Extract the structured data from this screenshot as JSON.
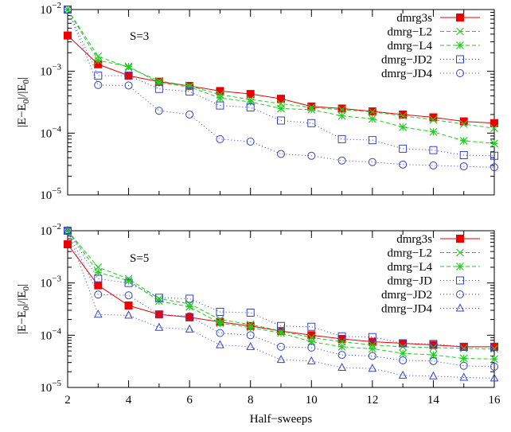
{
  "chart_data": [
    {
      "type": "line",
      "annotation": "S=3",
      "ylabel_main": "|E−E",
      "ylabel_sub": "0",
      "ylabel_mid": "|/|E",
      "ylabel_sub2": "0",
      "ylabel_end": "|",
      "yscale": "log",
      "ylim": [
        1e-05,
        0.01
      ],
      "xlim": [
        2,
        16
      ],
      "yticks": [
        {
          "value": 0.01,
          "base": "10",
          "exp": "−2"
        },
        {
          "value": 0.001,
          "base": "10",
          "exp": "−3"
        },
        {
          "value": 0.0001,
          "base": "10",
          "exp": "−4"
        },
        {
          "value": 1e-05,
          "base": "10",
          "exp": "−5"
        }
      ],
      "legend_position": "top-right",
      "series": [
        {
          "name": "dmrg3s",
          "color": "#ee0000",
          "marker": "filled-square",
          "dash": "",
          "x": [
            2,
            3,
            4,
            5,
            6,
            7,
            8,
            9,
            10,
            11,
            12,
            13,
            14,
            15,
            16
          ],
          "y": [
            0.0038,
            0.0013,
            0.00085,
            0.00068,
            0.00058,
            0.00048,
            0.00043,
            0.00036,
            0.00027,
            0.00025,
            0.000225,
            0.0002,
            0.00018,
            0.000155,
            0.000145
          ]
        },
        {
          "name": "dmrg−L2",
          "color": "#22cc22",
          "marker": "x",
          "dash": "5,3",
          "x": [
            2,
            3,
            4,
            5,
            6,
            7,
            8,
            9,
            10,
            11,
            12,
            13,
            14,
            15,
            16
          ],
          "y": [
            0.01,
            0.00175,
            0.00115,
            0.0007,
            0.00058,
            0.00042,
            0.00035,
            0.0003,
            0.00026,
            0.00024,
            0.00022,
            0.00019,
            0.000165,
            0.00014,
            0.00012
          ]
        },
        {
          "name": "dmrg−L4",
          "color": "#22cc22",
          "marker": "star",
          "dash": "5,3",
          "x": [
            2,
            3,
            4,
            5,
            6,
            7,
            8,
            9,
            10,
            11,
            12,
            13,
            14,
            15,
            16
          ],
          "y": [
            0.01,
            0.0015,
            0.0012,
            0.00065,
            0.00056,
            0.00037,
            0.00032,
            0.00025,
            0.00024,
            0.00019,
            0.00017,
            0.000125,
            0.000105,
            7.5e-05,
            6.8e-05
          ]
        },
        {
          "name": "dmrg−JD2",
          "color": "#3344cc",
          "marker": "open-square",
          "dash": "1,3",
          "x": [
            2,
            3,
            4,
            5,
            6,
            7,
            8,
            9,
            10,
            11,
            12,
            13,
            14,
            15,
            16
          ],
          "y": [
            0.01,
            0.00085,
            0.00085,
            0.00052,
            0.00047,
            0.00028,
            0.00026,
            0.00016,
            0.000145,
            8e-05,
            7.7e-05,
            5.6e-05,
            5.3e-05,
            4.4e-05,
            4.3e-05
          ]
        },
        {
          "name": "dmrg−JD4",
          "color": "#3344cc",
          "marker": "open-circle",
          "dash": "1,3",
          "x": [
            2,
            3,
            4,
            5,
            6,
            7,
            8,
            9,
            10,
            11,
            12,
            13,
            14,
            15,
            16
          ],
          "y": [
            0.01,
            0.0006,
            0.00059,
            0.00023,
            0.0002,
            8e-05,
            7.3e-05,
            4.6e-05,
            4.3e-05,
            3.6e-05,
            3.4e-05,
            3.1e-05,
            3e-05,
            2.9e-05,
            2.8e-05
          ]
        }
      ]
    },
    {
      "type": "line",
      "annotation": "S=5",
      "ylabel_main": "|E−E",
      "ylabel_sub": "0",
      "ylabel_mid": "|/|E",
      "ylabel_sub2": "0",
      "ylabel_end": "|",
      "xlabel": "Half−sweeps",
      "yscale": "log",
      "ylim": [
        1e-05,
        0.01
      ],
      "xlim": [
        2,
        16
      ],
      "xticks": [
        "2",
        "4",
        "6",
        "8",
        "10",
        "12",
        "14",
        "16"
      ],
      "yticks": [
        {
          "value": 0.01,
          "base": "10",
          "exp": "−2"
        },
        {
          "value": 0.001,
          "base": "10",
          "exp": "−3"
        },
        {
          "value": 0.0001,
          "base": "10",
          "exp": "−4"
        },
        {
          "value": 1e-05,
          "base": "10",
          "exp": "−5"
        }
      ],
      "legend_position": "top-right",
      "series": [
        {
          "name": "dmrg3s",
          "color": "#ee0000",
          "marker": "filled-square",
          "dash": "",
          "x": [
            2,
            3,
            4,
            5,
            6,
            7,
            8,
            9,
            10,
            11,
            12,
            13,
            14,
            15,
            16
          ],
          "y": [
            0.0055,
            0.0009,
            0.00037,
            0.00025,
            0.00022,
            0.00018,
            0.00015,
            0.00012,
            0.0001,
            8.5e-05,
            7.5e-05,
            7e-05,
            6.5e-05,
            6e-05,
            6e-05
          ]
        },
        {
          "name": "dmrg−L2",
          "color": "#22cc22",
          "marker": "x",
          "dash": "5,3",
          "x": [
            2,
            3,
            4,
            5,
            6,
            7,
            8,
            9,
            10,
            11,
            12,
            13,
            14,
            15,
            16
          ],
          "y": [
            0.01,
            0.002,
            0.0012,
            0.0005,
            0.0004,
            0.0002,
            0.00016,
            0.00012,
            9e-05,
            7.5e-05,
            6.5e-05,
            6e-05,
            5.8e-05,
            5.6e-05,
            5.5e-05
          ]
        },
        {
          "name": "dmrg−L4",
          "color": "#22cc22",
          "marker": "star",
          "dash": "5,3",
          "x": [
            2,
            3,
            4,
            5,
            6,
            7,
            8,
            9,
            10,
            11,
            12,
            13,
            14,
            15,
            16
          ],
          "y": [
            0.01,
            0.0016,
            0.0011,
            0.00045,
            0.00035,
            0.00017,
            0.00014,
            0.00011,
            7.5e-05,
            6e-05,
            5.5e-05,
            4.5e-05,
            4.2e-05,
            3.6e-05,
            3.5e-05
          ]
        },
        {
          "name": "dmrg−JD",
          "color": "#3344cc",
          "marker": "open-square",
          "dash": "1,3",
          "x": [
            2,
            3,
            4,
            5,
            6,
            7,
            8,
            9,
            10,
            11,
            12,
            13,
            14,
            15,
            16
          ],
          "y": [
            0.01,
            0.0012,
            0.001,
            0.00052,
            0.0005,
            0.00028,
            0.00027,
            0.00015,
            0.000145,
            9.5e-05,
            9.2e-05,
            7e-05,
            6.8e-05,
            6e-05,
            6e-05
          ]
        },
        {
          "name": "dmrg−JD2",
          "color": "#3344cc",
          "marker": "open-circle",
          "dash": "1,3",
          "x": [
            2,
            3,
            4,
            5,
            6,
            7,
            8,
            9,
            10,
            11,
            12,
            13,
            14,
            15,
            16
          ],
          "y": [
            0.01,
            0.0006,
            0.00058,
            0.00025,
            0.00023,
            0.00011,
            0.0001,
            6e-05,
            5.8e-05,
            4.2e-05,
            4e-05,
            3.3e-05,
            3.2e-05,
            2.6e-05,
            2.5e-05
          ]
        },
        {
          "name": "dmrg−JD4",
          "color": "#3344cc",
          "marker": "open-triangle",
          "dash": "1,3",
          "x": [
            2,
            3,
            4,
            5,
            6,
            7,
            8,
            9,
            10,
            11,
            12,
            13,
            14,
            15,
            16
          ],
          "y": [
            0.01,
            0.00025,
            0.00024,
            0.00014,
            0.00013,
            6.5e-05,
            6e-05,
            3.4e-05,
            3.2e-05,
            2.4e-05,
            2.3e-05,
            1.7e-05,
            1.65e-05,
            1.55e-05,
            1.5e-05
          ]
        }
      ]
    }
  ]
}
